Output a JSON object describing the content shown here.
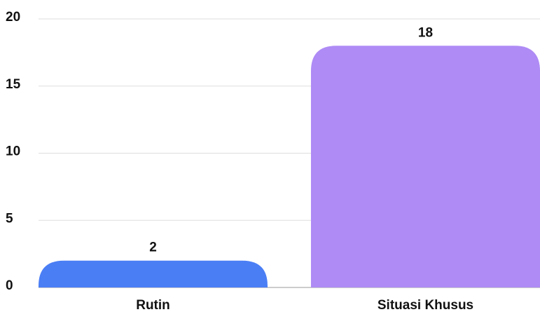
{
  "chart_data": {
    "type": "bar",
    "categories": [
      "Rutin",
      "Situasi Khusus"
    ],
    "values": [
      2,
      18
    ],
    "colors": [
      "#4a7ef5",
      "#ae8bf5"
    ],
    "ylim": [
      0,
      20
    ],
    "yticks": [
      0,
      5,
      10,
      15,
      20
    ],
    "grid": true
  }
}
